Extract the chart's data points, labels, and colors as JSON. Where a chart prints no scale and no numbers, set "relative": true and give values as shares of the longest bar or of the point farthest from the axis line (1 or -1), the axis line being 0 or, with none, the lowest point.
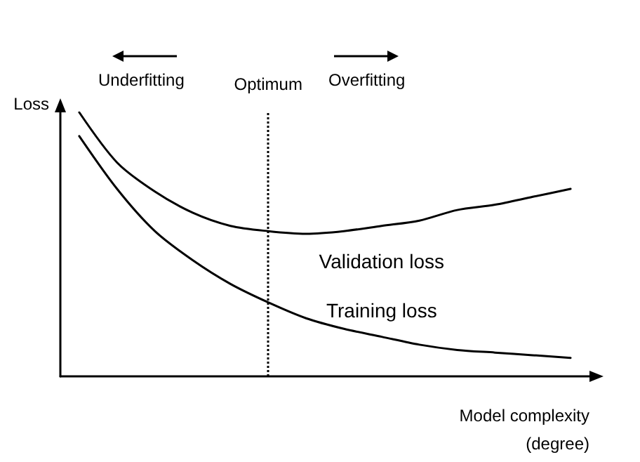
{
  "chart_data": {
    "type": "line",
    "relative": true,
    "ylabel": "Loss",
    "xlabel": "Model complexity\n(degree)",
    "categories": [
      null,
      null,
      null,
      null,
      null,
      null,
      null,
      null,
      null,
      null,
      null,
      null,
      null,
      null
    ],
    "series": [
      {
        "name": "Validation loss",
        "color": "#000000",
        "values": [
          1,
          0.81,
          0.7,
          0.62,
          0.57,
          0.55,
          0.54,
          0.55,
          0.57,
          0.59,
          0.63,
          0.65,
          0.68,
          0.71
        ]
      },
      {
        "name": "Training loss",
        "color": "#000000",
        "values": [
          0.91,
          0.71,
          0.55,
          0.44,
          0.35,
          0.28,
          0.22,
          0.18,
          0.15,
          0.12,
          0.1,
          0.09,
          0.08,
          0.07
        ]
      }
    ],
    "annotations": [
      "Underfitting",
      "Optimum",
      "Overfitting"
    ],
    "grid": false,
    "legend": false,
    "marker": "none",
    "line_style": "solid"
  }
}
